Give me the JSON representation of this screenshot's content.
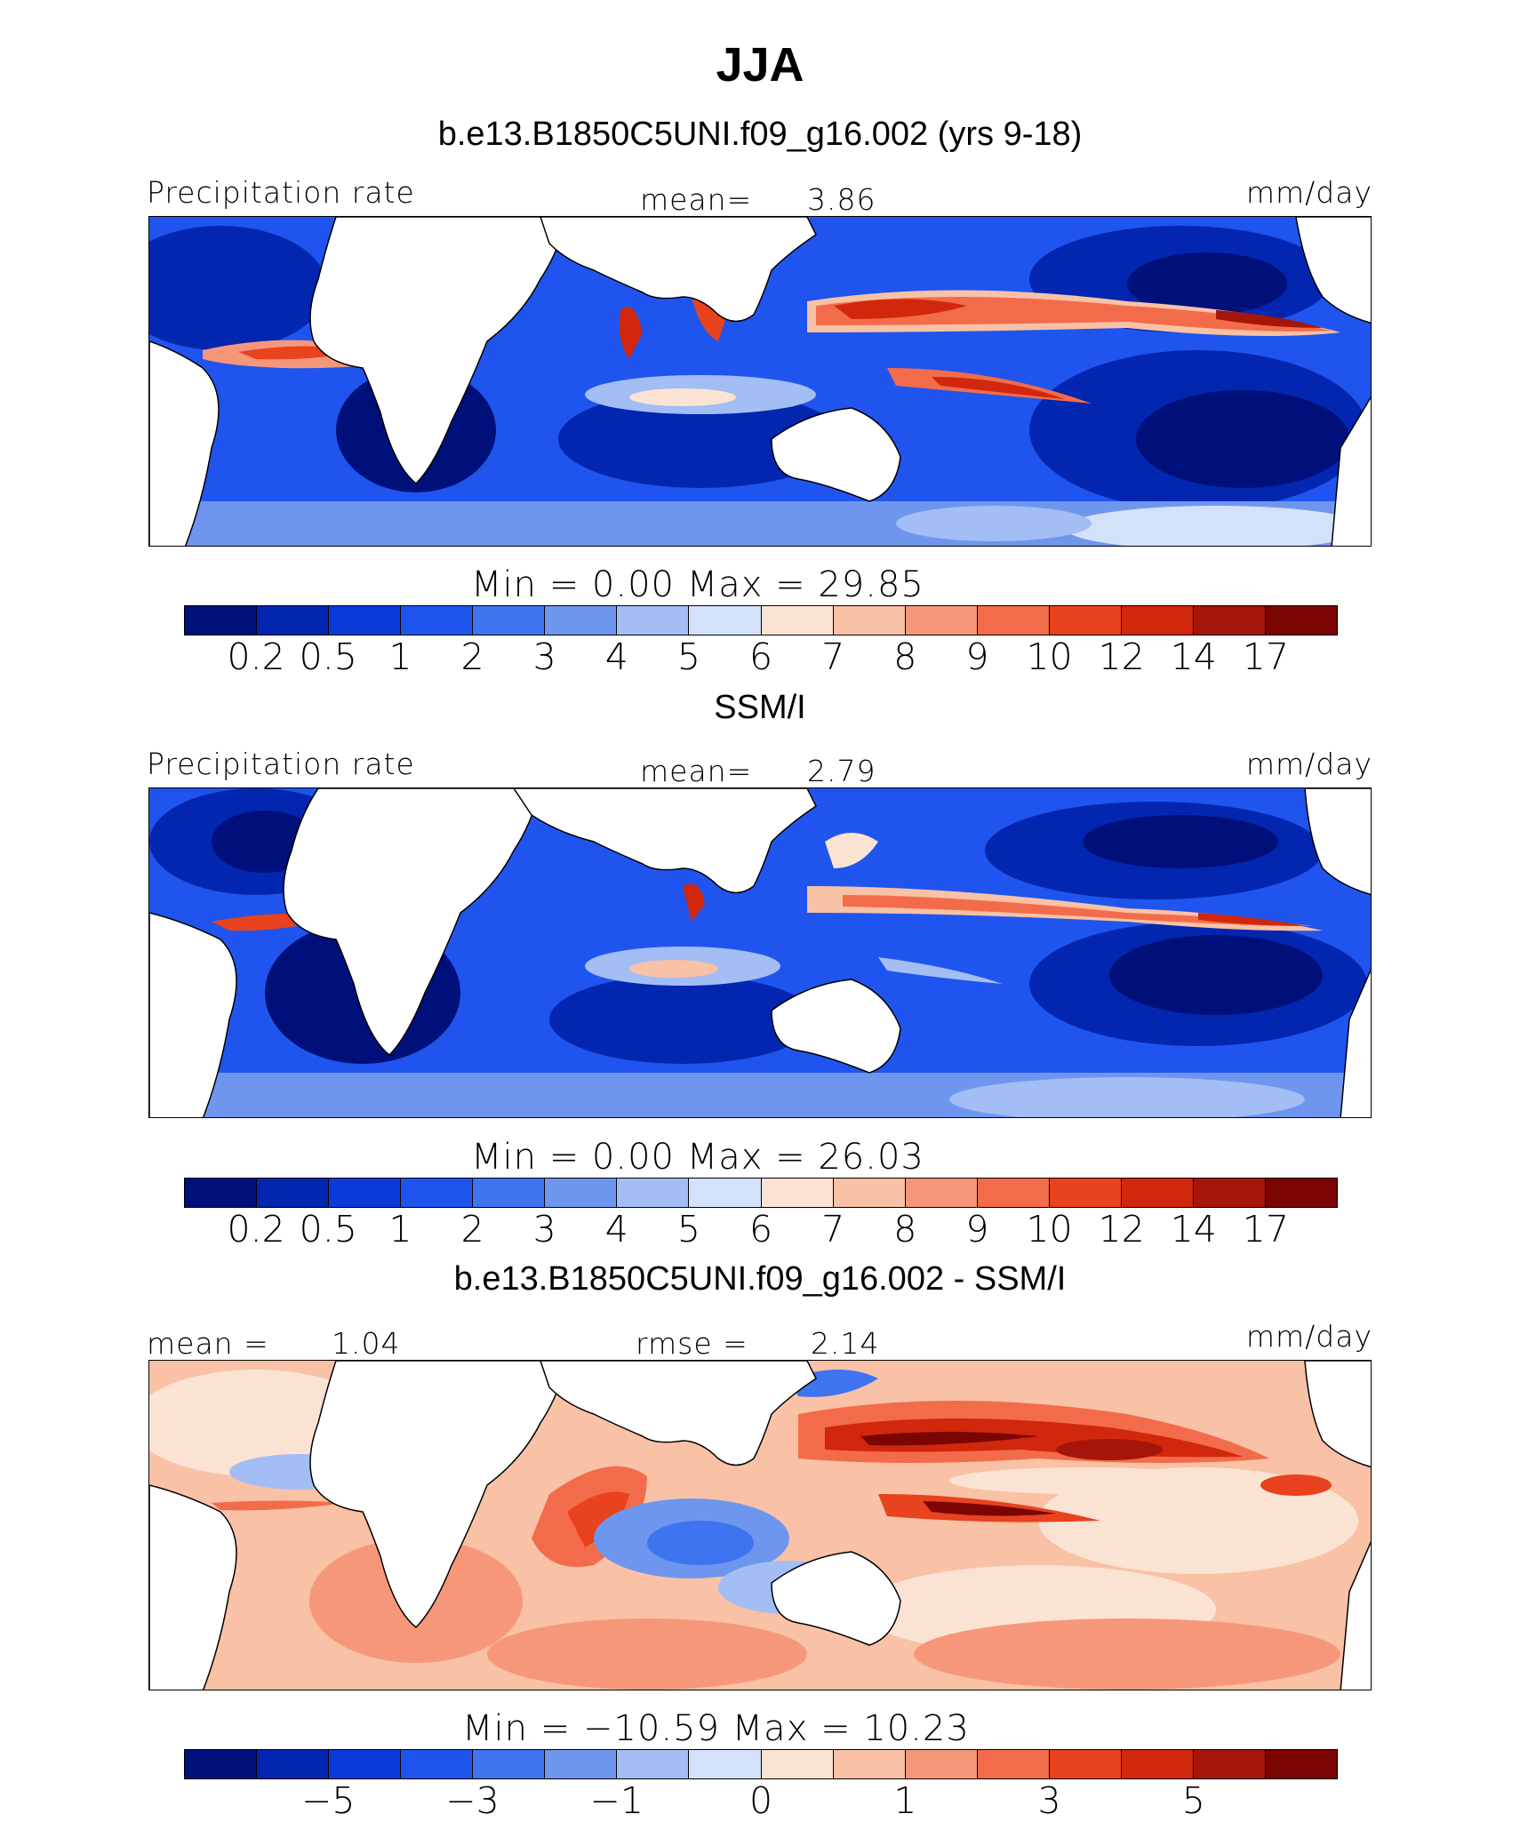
{
  "title": "JJA",
  "panels": [
    {
      "heading": "b.e13.B1850C5UNI.f09_g16.002 (yrs 9-18)",
      "left_label": "Precipitation rate",
      "mid_label": "mean=",
      "mid_value": "3.86",
      "right_label": "mm/day",
      "minmax": "Min =     0.00  Max =    29.85",
      "colorbar_ticks": [
        "0.2",
        "0.5",
        "1",
        "2",
        "3",
        "4",
        "5",
        "6",
        "7",
        "8",
        "9",
        "10",
        "12",
        "14",
        "17"
      ],
      "palette": "precip"
    },
    {
      "heading": "SSM/I",
      "left_label": "Precipitation rate",
      "mid_label": "mean=",
      "mid_value": "2.79",
      "right_label": "mm/day",
      "minmax": "Min =     0.00  Max =    26.03",
      "colorbar_ticks": [
        "0.2",
        "0.5",
        "1",
        "2",
        "3",
        "4",
        "5",
        "6",
        "7",
        "8",
        "9",
        "10",
        "12",
        "14",
        "17"
      ],
      "palette": "precip"
    },
    {
      "heading": "b.e13.B1850C5UNI.f09_g16.002 - SSM/I",
      "left_label": "mean =",
      "left_value": "1.04",
      "mid_label": "rmse =",
      "mid_value": "2.14",
      "right_label": "mm/day",
      "minmax": "Min = −10.59  Max =   10.23",
      "colorbar_ticks": [
        "−5",
        "−3",
        "−1",
        "0",
        "1",
        "3",
        "5"
      ],
      "palette": "diff"
    }
  ],
  "colors": {
    "precip": [
      "#00107a",
      "#0326b0",
      "#0a3ad8",
      "#1f55ee",
      "#3f74f0",
      "#6f96ef",
      "#a3bdf5",
      "#d3e2fa",
      "#fbe3d4",
      "#f9c1a5",
      "#f7977a",
      "#f26c4b",
      "#e8421e",
      "#d1270c",
      "#a5150a",
      "#7a0503"
    ],
    "diff": [
      "#00107a",
      "#0326b0",
      "#0a3ad8",
      "#1f55ee",
      "#3f74f0",
      "#6f96ef",
      "#a3bdf5",
      "#d3e2fa",
      "#fbe3d4",
      "#f9c1a5",
      "#f7977a",
      "#f26c4b",
      "#e8421e",
      "#d1270c",
      "#a5150a",
      "#7a0503"
    ]
  }
}
